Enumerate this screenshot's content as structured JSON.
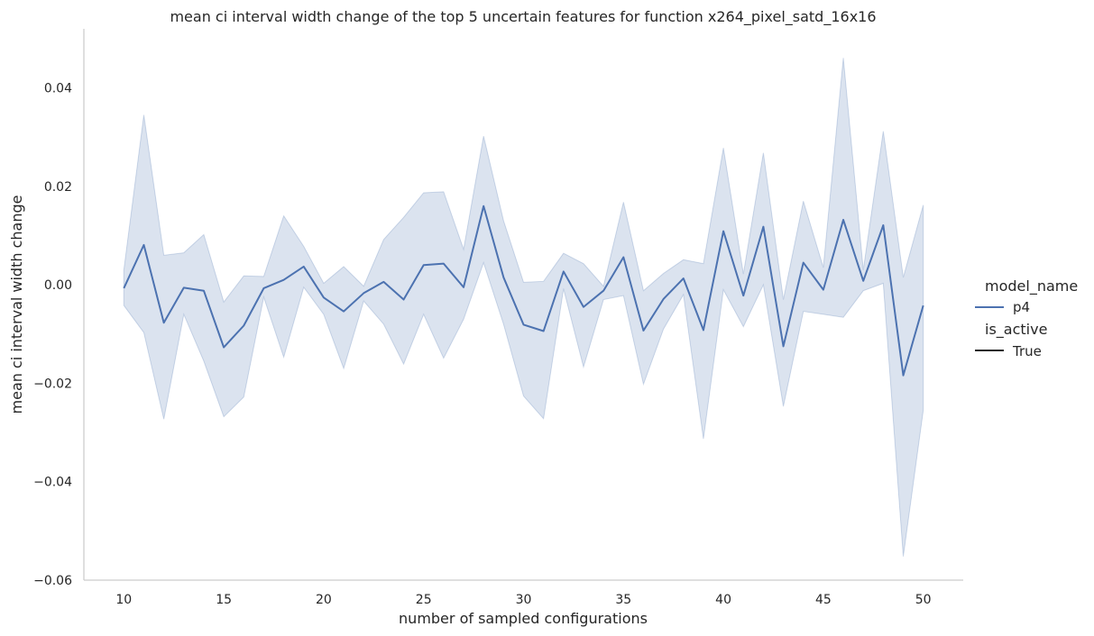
{
  "chart_data": {
    "type": "line",
    "title": "mean ci interval width change of the top 5 uncertain features for function x264_pixel_satd_16x16",
    "xlabel": "number of sampled configurations",
    "ylabel": "mean ci interval width change",
    "xlim": [
      8,
      52
    ],
    "ylim": [
      -0.06,
      0.052
    ],
    "xticks": [
      10,
      15,
      20,
      25,
      30,
      35,
      40,
      45,
      50
    ],
    "yticks": [
      -0.06,
      -0.04,
      -0.02,
      0.0,
      0.02,
      0.04
    ],
    "ytick_labels": [
      "−0.06",
      "−0.04",
      "−0.02",
      "0.00",
      "0.02",
      "0.04"
    ],
    "grid": false,
    "legend": {
      "placement": "right",
      "hue_title": "model_name",
      "hue_entry": "p4",
      "style_title": "is_active",
      "style_entry": "True"
    },
    "series": [
      {
        "name": "p4",
        "color": "#4c72b0",
        "band_color": "#4c72b0",
        "x": [
          10,
          11,
          12,
          13,
          14,
          15,
          16,
          17,
          18,
          19,
          20,
          21,
          22,
          23,
          24,
          25,
          26,
          27,
          28,
          29,
          30,
          31,
          32,
          33,
          34,
          35,
          36,
          37,
          38,
          39,
          40,
          41,
          42,
          43,
          44,
          45,
          46,
          47,
          48,
          49,
          50
        ],
        "y": [
          -0.0007,
          0.0081,
          -0.0077,
          -0.0006,
          -0.0012,
          -0.0127,
          -0.0083,
          -0.0007,
          0.001,
          0.0037,
          -0.0026,
          -0.0054,
          -0.0017,
          0.0006,
          -0.003,
          0.004,
          0.0043,
          -0.0005,
          0.016,
          0.0015,
          -0.0081,
          -0.0094,
          0.0027,
          -0.0045,
          -0.0012,
          0.0056,
          -0.0093,
          -0.0029,
          0.0013,
          -0.0092,
          0.0109,
          -0.0022,
          0.0118,
          -0.0125,
          0.0045,
          -0.001,
          0.0132,
          0.0008,
          0.0121,
          -0.0184,
          -0.0042
        ],
        "ci_low": [
          -0.0042,
          -0.0097,
          -0.0273,
          -0.006,
          -0.0155,
          -0.0268,
          -0.0228,
          -0.0025,
          -0.0147,
          -0.0005,
          -0.006,
          -0.017,
          -0.0033,
          -0.008,
          -0.0161,
          -0.006,
          -0.0149,
          -0.007,
          0.0045,
          -0.008,
          -0.0226,
          -0.0272,
          -0.0008,
          -0.0167,
          -0.003,
          -0.0022,
          -0.0202,
          -0.009,
          -0.002,
          -0.0313,
          -0.001,
          -0.0085,
          0.0,
          -0.0247,
          -0.0054,
          -0.006,
          -0.0066,
          -0.0012,
          0.0003,
          -0.0552,
          -0.0255
        ],
        "ci_high": [
          0.003,
          0.0345,
          0.006,
          0.0065,
          0.0102,
          -0.0035,
          0.0018,
          0.0017,
          0.014,
          0.0078,
          0.0003,
          0.0037,
          -0.0003,
          0.0092,
          0.0137,
          0.0187,
          0.0189,
          0.0072,
          0.0302,
          0.013,
          0.0005,
          0.0007,
          0.0064,
          0.0043,
          -0.0003,
          0.0168,
          -0.0012,
          0.0023,
          0.0051,
          0.0043,
          0.0278,
          0.0022,
          0.0268,
          -0.003,
          0.017,
          0.0035,
          0.0461,
          0.003,
          0.0312,
          0.0015,
          0.0162
        ]
      }
    ]
  }
}
